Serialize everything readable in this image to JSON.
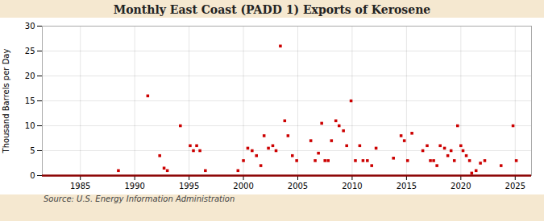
{
  "chart_data": {
    "type": "scatter",
    "title": "Monthly East Coast (PADD 1) Exports of Kerosene",
    "ylabel": "Thousand Barrels per Day",
    "annotations": [
      "Source: U.S. Energy Information Administration"
    ],
    "color": "#cc0000",
    "marker": "square",
    "grid": true,
    "xlim": [
      1981.5,
      2026.5
    ],
    "ylim": [
      0,
      30
    ],
    "xticks": [
      1985,
      1990,
      1995,
      2000,
      2005,
      2010,
      2015,
      2020,
      2025
    ],
    "yticks": [
      0,
      5,
      10,
      15,
      20,
      25,
      30
    ],
    "x": [
      1988.5,
      1991.2,
      1992.3,
      1992.7,
      1993.0,
      1994.2,
      1995.1,
      1995.4,
      1995.7,
      1996.0,
      1996.5,
      1999.5,
      2000.0,
      2000.4,
      2000.8,
      2001.2,
      2001.6,
      2001.9,
      2002.3,
      2002.7,
      2003.0,
      2003.4,
      2003.8,
      2004.1,
      2004.5,
      2004.9,
      2006.2,
      2006.6,
      2006.9,
      2007.2,
      2007.5,
      2007.8,
      2008.1,
      2008.5,
      2008.8,
      2009.2,
      2009.5,
      2009.9,
      2010.3,
      2010.7,
      2011.0,
      2011.4,
      2011.8,
      2012.2,
      2013.8,
      2014.5,
      2014.8,
      2015.1,
      2015.5,
      2016.5,
      2016.9,
      2017.2,
      2017.5,
      2017.8,
      2018.1,
      2018.5,
      2018.8,
      2019.1,
      2019.4,
      2019.7,
      2020.0,
      2020.2,
      2020.5,
      2020.8,
      2021.0,
      2021.4,
      2021.8,
      2022.2,
      2023.7,
      2024.8,
      2025.1
    ],
    "values": [
      1.0,
      16.0,
      4.0,
      1.5,
      1.0,
      10.0,
      6.0,
      5.0,
      6.0,
      5.0,
      1.0,
      1.0,
      3.0,
      5.5,
      5.0,
      4.0,
      2.0,
      8.0,
      5.5,
      6.0,
      5.0,
      26.0,
      11.0,
      8.0,
      4.0,
      3.0,
      7.0,
      3.0,
      4.5,
      10.5,
      3.0,
      3.0,
      7.0,
      11.0,
      10.0,
      9.0,
      6.0,
      15.0,
      3.0,
      6.0,
      3.0,
      3.0,
      2.0,
      5.5,
      3.5,
      8.0,
      7.0,
      3.0,
      8.5,
      5.0,
      6.0,
      3.0,
      3.0,
      2.0,
      6.0,
      5.5,
      4.0,
      5.0,
      3.0,
      10.0,
      6.0,
      5.0,
      4.0,
      3.0,
      0.5,
      1.0,
      2.5,
      3.0,
      2.0,
      10.0,
      3.0
    ]
  }
}
